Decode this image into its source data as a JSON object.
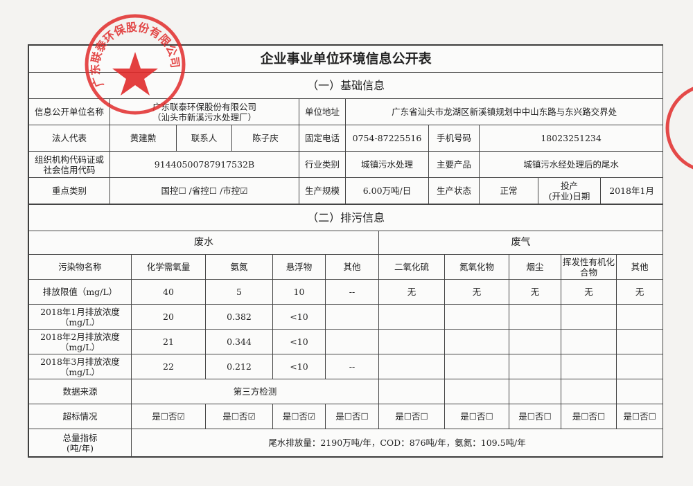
{
  "title": "企业事业单位环境信息公开表",
  "section1": {
    "heading": "（一）基础信息",
    "rows": {
      "unit_name_label": "信息公开单位名称",
      "unit_name_line1": "广东联泰环保股份有限公司",
      "unit_name_line2": "（汕头市新溪污水处理厂）",
      "address_label": "单位地址",
      "address": "广东省汕头市龙湖区新溪镇规划中中山东路与东兴路交界处",
      "legal_rep_label": "法人代表",
      "legal_rep": "黄建勲",
      "contact_label": "联系人",
      "contact": "陈子庆",
      "phone_label": "固定电话",
      "phone": "0754-87225516",
      "mobile_label": "手机号码",
      "mobile": "18023251234",
      "org_code_label_1": "组织机构代码证或",
      "org_code_label_2": "社会信用代码",
      "org_code": "91440500787917532B",
      "industry_label": "行业类别",
      "industry": "城镇污水处理",
      "product_label": "主要产品",
      "product": "城镇污水经处理后的尾水",
      "key_type_label": "重点类别",
      "key_type": "国控☐ /省控☐ /市控☑",
      "scale_label": "生产规模",
      "scale": "6.00万吨/日",
      "status_label": "生产状态",
      "status": "正常",
      "start_date_label_1": "投产",
      "start_date_label_2": "(开业)日期",
      "start_date": "2018年1月"
    }
  },
  "section2": {
    "heading": "（二）排污信息",
    "wastewater": "废水",
    "waste_gas": "废气",
    "headers": [
      "污染物名称",
      "化学需氧量",
      "氨氮",
      "悬浮物",
      "其他",
      "二氧化硫",
      "氮氧化物",
      "烟尘",
      "挥发性有机化合物",
      "其他"
    ],
    "rows": [
      {
        "label": "排放限值（mg/L）",
        "cells": [
          "40",
          "5",
          "10",
          "--",
          "无",
          "无",
          "无",
          "无",
          "无"
        ]
      },
      {
        "label": "2018年1月排放浓度（mg/L）",
        "cells": [
          "20",
          "0.382",
          "<10",
          "",
          "",
          "",
          "",
          "",
          ""
        ]
      },
      {
        "label": "2018年2月排放浓度（mg/L）",
        "cells": [
          "21",
          "0.344",
          "<10",
          "",
          "",
          "",
          "",
          "",
          ""
        ]
      },
      {
        "label": "2018年3月排放浓度（mg/L）",
        "cells": [
          "22",
          "0.212",
          "<10",
          "--",
          "",
          "",
          "",
          "",
          ""
        ]
      }
    ],
    "data_source_label": "数据来源",
    "data_source": "第三方检测",
    "exceed_label": "超标情况",
    "exceed": [
      "是☐否☑",
      "是☐否☑",
      "是☐否☑",
      "是☐否☐",
      "是☐否☐",
      "是☐否☐",
      "是☐否☐",
      "是☐否☐",
      "是☐否☐"
    ],
    "total_label_1": "总量指标",
    "total_label_2": "(吨/年)",
    "total": "尾水排放量：2190万吨/年，COD：876吨/年，氨氮：109.5吨/年"
  },
  "stamp": {
    "text": "广东联泰环保股份有限公司",
    "color": "#e02a2a"
  }
}
